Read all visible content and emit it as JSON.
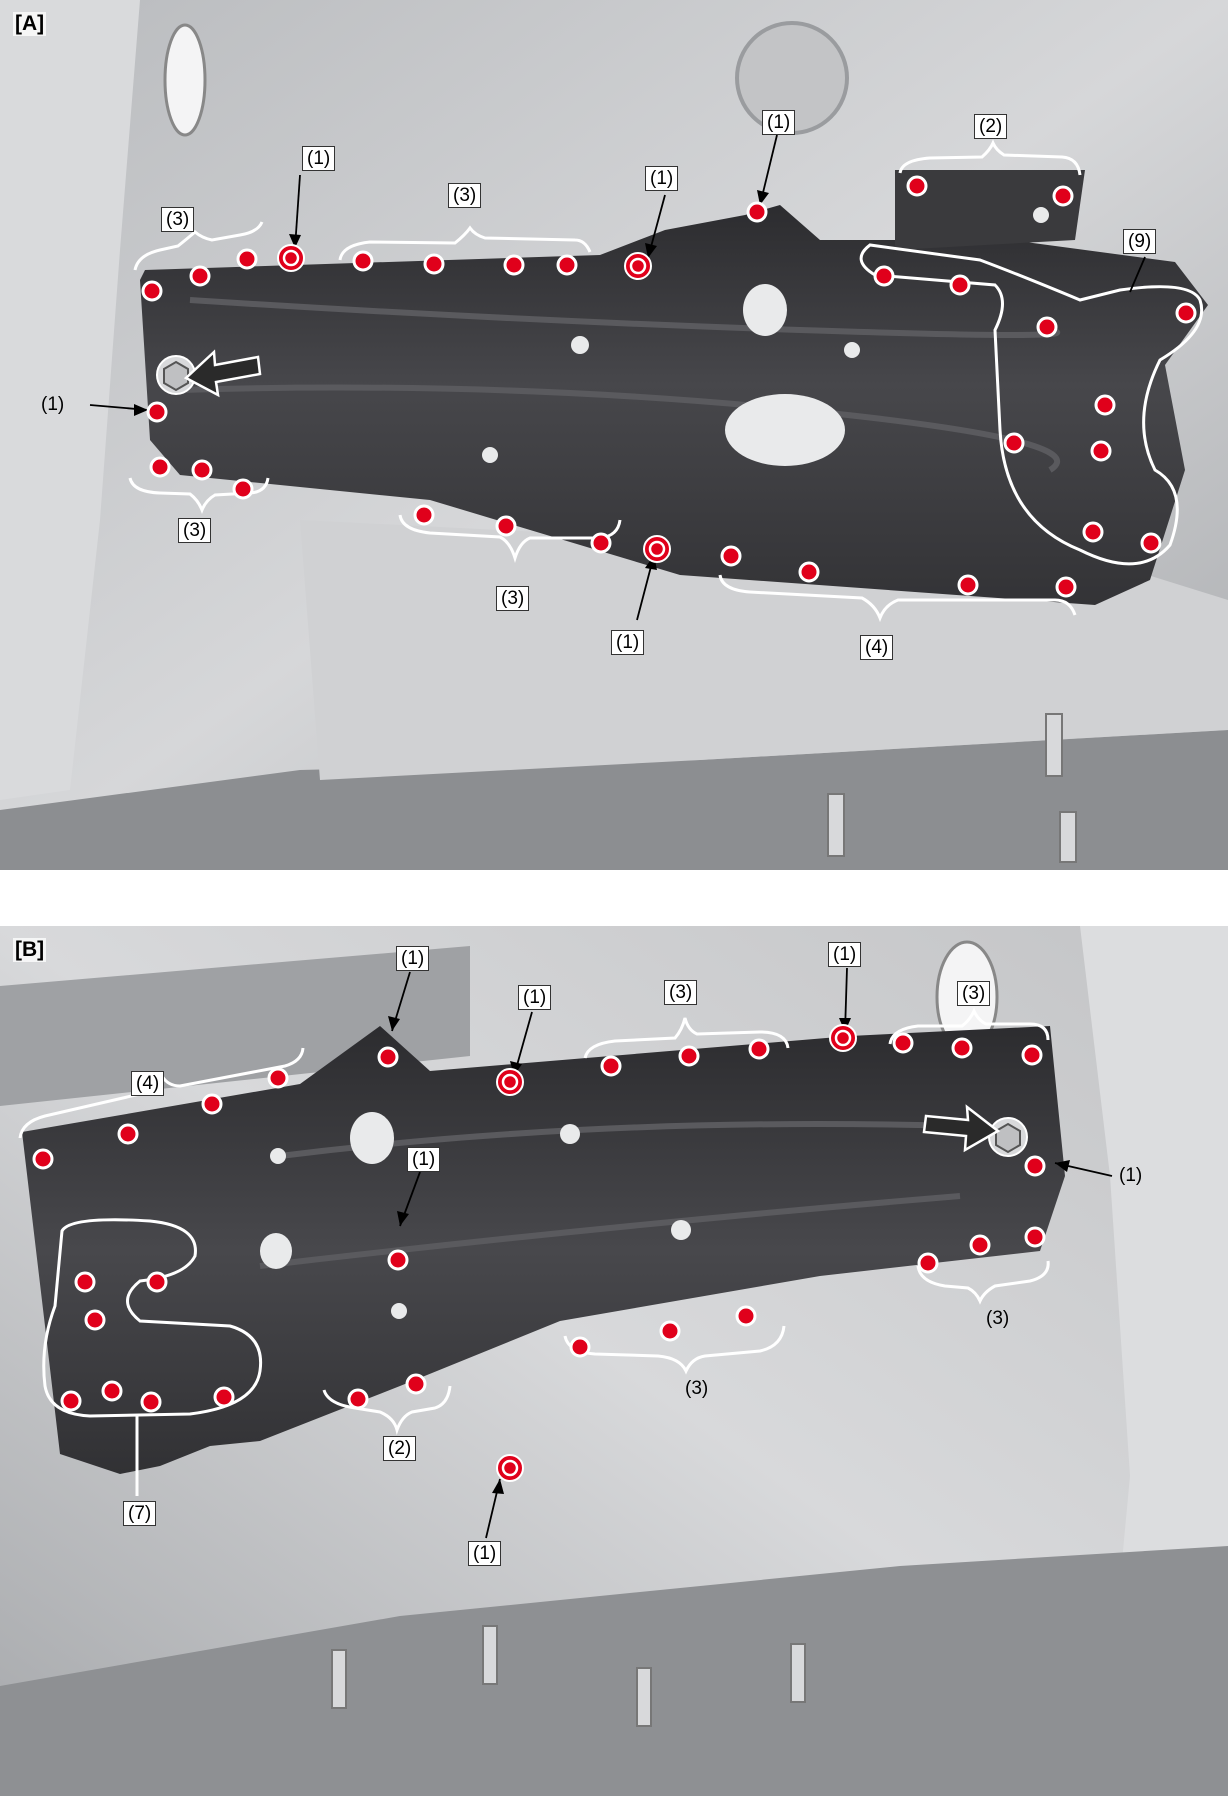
{
  "panels": [
    {
      "tag": "[A]",
      "callouts": [
        {
          "text": "(1)"
        },
        {
          "text": "(3)"
        },
        {
          "text": "(3)"
        },
        {
          "text": "(1)"
        },
        {
          "text": "(1)"
        },
        {
          "text": "(2)"
        },
        {
          "text": "(9)"
        },
        {
          "text": "(1)"
        },
        {
          "text": "(3)"
        },
        {
          "text": "(3)"
        },
        {
          "text": "(1)"
        },
        {
          "text": "(4)"
        }
      ]
    },
    {
      "tag": "[B]",
      "callouts": [
        {
          "text": "(1)"
        },
        {
          "text": "(1)"
        },
        {
          "text": "(3)"
        },
        {
          "text": "(1)"
        },
        {
          "text": "(3)"
        },
        {
          "text": "(4)"
        },
        {
          "text": "(1)"
        },
        {
          "text": "(1)"
        },
        {
          "text": "(3)"
        },
        {
          "text": "(3)"
        },
        {
          "text": "(2)"
        },
        {
          "text": "(1)"
        },
        {
          "text": "(7)"
        }
      ]
    }
  ],
  "colors": {
    "weld_spot": "#e0001b",
    "panel_dark": "#3d3d40",
    "body_light": "#c9cacc",
    "outline": "#ffffff"
  }
}
